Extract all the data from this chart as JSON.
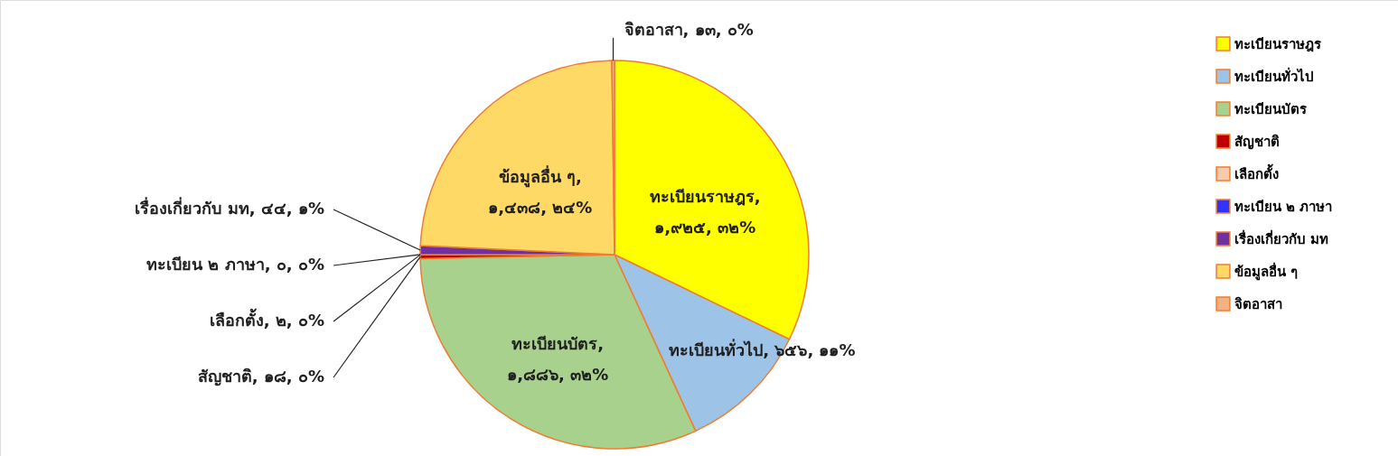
{
  "chart_data": {
    "type": "pie",
    "categories": [
      "ทะเบียนราษฎร",
      "ทะเบียนทั่วไป",
      "ทะเบียนบัตร",
      "สัญชาติ",
      "เลือกตั้ง",
      "ทะเบียน ๒ ภาษา",
      "เรื่องเกี่ยวกับ มท",
      "ข้อมูลอื่น ๆ",
      "จิตอาสา"
    ],
    "values": [
      1925,
      656,
      1886,
      18,
      2,
      0,
      44,
      1438,
      13
    ],
    "value_labels": [
      "ทะเบียนราษฎร, ๑,๙๒๕, ๓๒%",
      "ทะเบียนทั่วไป, ๖๕๖, ๑๑%",
      "ทะเบียนบัตร, ๑,๘๘๖, ๓๒%",
      "สัญชาติ, ๑๘, ๐%",
      "เลือกตั้ง, ๒, ๐%",
      "ทะเบียน ๒ ภาษา, ๐, ๐%",
      "เรื่องเกี่ยวกับ มท, ๔๔, ๑%",
      "ข้อมูลอื่น ๆ, ๑,๔๓๘, ๒๔%",
      "จิตอาสา, ๑๓, ๐%"
    ],
    "colors": [
      "#ffff00",
      "#9dc3e6",
      "#a9d18e",
      "#c00000",
      "#f8cbad",
      "#3333ff",
      "#7030a0",
      "#ffd966",
      "#f4b183"
    ],
    "legend": "right"
  }
}
